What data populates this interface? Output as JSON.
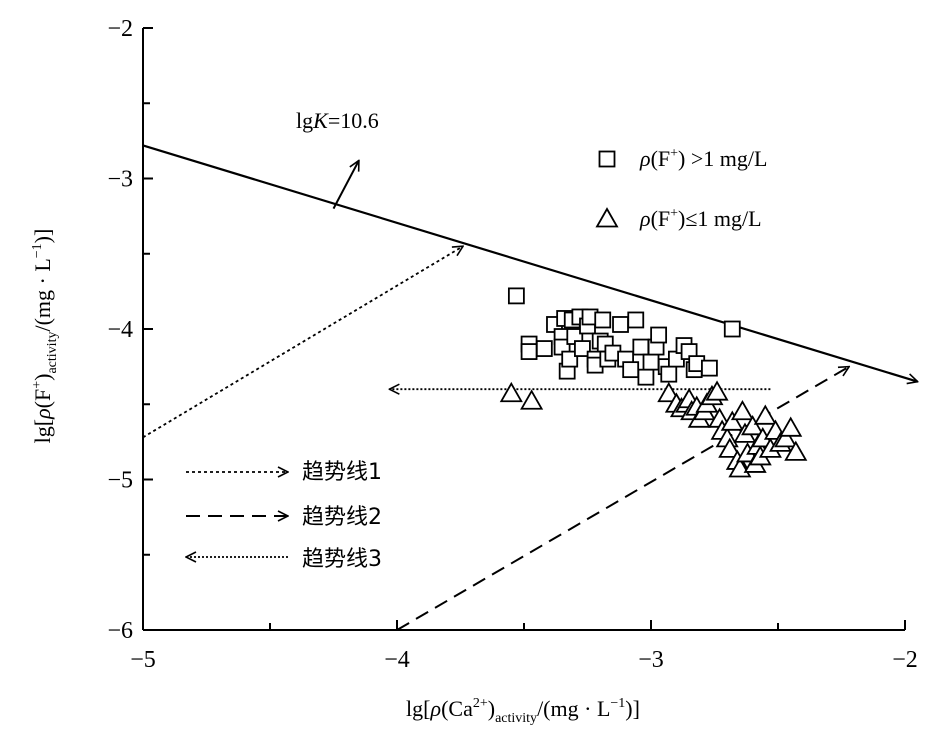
{
  "chart_data": {
    "type": "scatter",
    "xlim": [
      -5,
      -2
    ],
    "ylim": [
      -6,
      -2
    ],
    "xticks": [
      -5,
      -4,
      -3,
      -2
    ],
    "yticks": [
      -2,
      -3,
      -4,
      -5,
      -6
    ],
    "xtick_labels": [
      "−5",
      "−4",
      "−3",
      "−2"
    ],
    "ytick_labels": [
      "−2",
      "−3",
      "−4",
      "−5",
      "−6"
    ],
    "xlabel": "lg[ρ(Ca²⁺)activity/(mg · L⁻¹)]",
    "ylabel": "lg[ρ(F⁺)activity/(mg · L⁻¹)]",
    "xlabel_parts": {
      "lead": "lg[",
      "rho": "ρ",
      "sym": "(Ca",
      "sup": "2+",
      "close": ")",
      "sub": "activity",
      "tail": "/(mg · L",
      "unit_sup": "−1",
      "end": ")]"
    },
    "ylabel_parts": {
      "lead": "lg[",
      "rho": "ρ",
      "sym": "(F",
      "sup": "+",
      "close": ")",
      "sub": "activity",
      "tail": "/(mg · L",
      "unit_sup": "−1",
      "end": ")]"
    },
    "legend_position": "top-right",
    "series": [
      {
        "name": "ρ(F⁺) >1 mg/L",
        "marker": "square",
        "legend_parts": {
          "rho": "ρ",
          "a": "(F",
          "sup": "+",
          "b": ") >1 mg/L"
        },
        "points": [
          [
            -3.53,
            -3.78
          ],
          [
            -3.48,
            -4.1
          ],
          [
            -3.48,
            -4.15
          ],
          [
            -3.42,
            -4.13
          ],
          [
            -3.38,
            -3.97
          ],
          [
            -3.35,
            -4.05
          ],
          [
            -3.35,
            -4.12
          ],
          [
            -3.34,
            -3.93
          ],
          [
            -3.33,
            -4.28
          ],
          [
            -3.32,
            -4.2
          ],
          [
            -3.31,
            -3.94
          ],
          [
            -3.3,
            -4.05
          ],
          [
            -3.28,
            -3.92
          ],
          [
            -3.27,
            -4.13
          ],
          [
            -3.25,
            -3.98
          ],
          [
            -3.24,
            -3.92
          ],
          [
            -3.22,
            -4.2
          ],
          [
            -3.22,
            -4.24
          ],
          [
            -3.2,
            -4.08
          ],
          [
            -3.19,
            -3.94
          ],
          [
            -3.18,
            -4.1
          ],
          [
            -3.17,
            -4.2
          ],
          [
            -3.15,
            -4.16
          ],
          [
            -3.12,
            -3.97
          ],
          [
            -3.1,
            -4.2
          ],
          [
            -3.08,
            -4.27
          ],
          [
            -3.06,
            -3.94
          ],
          [
            -3.04,
            -4.12
          ],
          [
            -3.02,
            -4.32
          ],
          [
            -3.0,
            -4.22
          ],
          [
            -2.98,
            -4.12
          ],
          [
            -2.97,
            -4.04
          ],
          [
            -2.94,
            -4.25
          ],
          [
            -2.93,
            -4.3
          ],
          [
            -2.9,
            -4.2
          ],
          [
            -2.87,
            -4.11
          ],
          [
            -2.85,
            -4.15
          ],
          [
            -2.83,
            -4.27
          ],
          [
            -2.82,
            -4.23
          ],
          [
            -2.77,
            -4.26
          ],
          [
            -2.68,
            -4.0
          ]
        ]
      },
      {
        "name": "ρ(F⁺)≤1 mg/L",
        "marker": "triangle",
        "legend_parts": {
          "rho": "ρ",
          "a": "(F",
          "sup": "+",
          "b": ")≤1 mg/L"
        },
        "points": [
          [
            -3.55,
            -4.43
          ],
          [
            -3.47,
            -4.48
          ],
          [
            -2.93,
            -4.43
          ],
          [
            -2.9,
            -4.5
          ],
          [
            -2.88,
            -4.53
          ],
          [
            -2.86,
            -4.5
          ],
          [
            -2.85,
            -4.47
          ],
          [
            -2.84,
            -4.55
          ],
          [
            -2.82,
            -4.52
          ],
          [
            -2.81,
            -4.6
          ],
          [
            -2.79,
            -4.55
          ],
          [
            -2.78,
            -4.5
          ],
          [
            -2.76,
            -4.45
          ],
          [
            -2.74,
            -4.42
          ],
          [
            -2.73,
            -4.6
          ],
          [
            -2.72,
            -4.68
          ],
          [
            -2.7,
            -4.73
          ],
          [
            -2.69,
            -4.8
          ],
          [
            -2.68,
            -4.62
          ],
          [
            -2.66,
            -4.88
          ],
          [
            -2.65,
            -4.93
          ],
          [
            -2.64,
            -4.55
          ],
          [
            -2.63,
            -4.7
          ],
          [
            -2.62,
            -4.83
          ],
          [
            -2.6,
            -4.65
          ],
          [
            -2.59,
            -4.9
          ],
          [
            -2.58,
            -4.78
          ],
          [
            -2.57,
            -4.85
          ],
          [
            -2.56,
            -4.73
          ],
          [
            -2.55,
            -4.58
          ],
          [
            -2.53,
            -4.8
          ],
          [
            -2.51,
            -4.68
          ],
          [
            -2.49,
            -4.76
          ],
          [
            -2.47,
            -4.73
          ],
          [
            -2.45,
            -4.66
          ],
          [
            -2.43,
            -4.82
          ]
        ]
      }
    ],
    "lines": [
      {
        "name": "lgK=10.6",
        "label_parts": {
          "lead": "lg",
          "k": "K",
          "tail": "=10.6"
        },
        "style": "solid",
        "from": [
          -5.0,
          -2.78
        ],
        "to": [
          -1.95,
          -4.35
        ],
        "normal_arrow_from": [
          -4.25,
          -3.2
        ],
        "normal_arrow_to": [
          -4.15,
          -2.88
        ]
      }
    ],
    "trend_lines": [
      {
        "name": "趋势线1",
        "style": "dotted",
        "from": [
          -5.0,
          -4.72
        ],
        "to": [
          -3.74,
          -3.45
        ]
      },
      {
        "name": "趋势线2",
        "style": "dashed",
        "from": [
          -4.0,
          -6.0
        ],
        "to": [
          -2.22,
          -4.25
        ]
      },
      {
        "name": "趋势线3",
        "style": "dense-dotted",
        "from": [
          -2.53,
          -4.4
        ],
        "to": [
          -4.03,
          -4.4
        ]
      }
    ]
  }
}
